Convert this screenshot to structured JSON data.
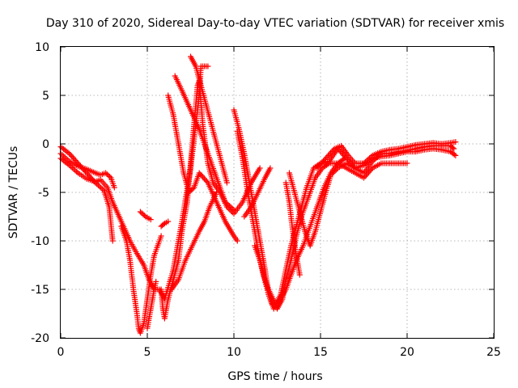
{
  "chart_data": {
    "type": "scatter",
    "title": "Day 310 of 2020, Sidereal Day-to-day VTEC variation (SDTVAR) for receiver xmis",
    "xlabel": "GPS time / hours",
    "ylabel": "SDTVAR / TECUs",
    "xlim": [
      0,
      25
    ],
    "ylim": [
      -20,
      10
    ],
    "xticks": [
      "0",
      "5",
      "10",
      "15",
      "20",
      "25"
    ],
    "yticks": [
      "-20",
      "-15",
      "-10",
      "-5",
      "0",
      "5",
      "10"
    ],
    "grid": true,
    "marker": "plus",
    "color": "#ff0000",
    "series": [
      {
        "points": [
          [
            0.0,
            -1.5
          ],
          [
            0.5,
            -2.2
          ],
          [
            1.0,
            -3.0
          ],
          [
            1.5,
            -3.6
          ],
          [
            2.0,
            -3.9
          ],
          [
            2.3,
            -3.7
          ],
          [
            2.7,
            -4.5
          ],
          [
            3.0,
            -6.0
          ],
          [
            3.5,
            -8.0
          ],
          [
            4.0,
            -10.0
          ],
          [
            4.4,
            -11.3
          ],
          [
            4.8,
            -12.5
          ],
          [
            5.1,
            -14.0
          ],
          [
            5.4,
            -15.0
          ],
          [
            5.7,
            -15.0
          ],
          [
            6.0,
            -16.0
          ],
          [
            6.5,
            -13.0
          ],
          [
            7.0,
            -8.0
          ],
          [
            7.5,
            -2.5
          ],
          [
            8.0,
            5.0
          ],
          [
            8.1,
            8.0
          ],
          [
            8.5,
            8.0
          ]
        ]
      },
      {
        "points": [
          [
            0.0,
            -1.0
          ],
          [
            0.5,
            -1.8
          ],
          [
            1.0,
            -2.3
          ],
          [
            1.5,
            -2.6
          ],
          [
            2.0,
            -3.0
          ],
          [
            2.3,
            -3.2
          ],
          [
            2.6,
            -3.0
          ],
          [
            2.9,
            -3.5
          ],
          [
            3.1,
            -4.5
          ]
        ]
      },
      {
        "points": [
          [
            0.0,
            -0.3
          ],
          [
            0.5,
            -1.0
          ],
          [
            1.0,
            -2.0
          ],
          [
            1.5,
            -3.0
          ],
          [
            2.0,
            -4.0
          ],
          [
            2.5,
            -4.8
          ],
          [
            2.8,
            -6.5
          ],
          [
            3.0,
            -10.0
          ]
        ]
      },
      {
        "points": [
          [
            3.5,
            -8.5
          ],
          [
            3.8,
            -10.0
          ],
          [
            4.0,
            -12.0
          ],
          [
            4.2,
            -15.0
          ],
          [
            4.4,
            -17.5
          ],
          [
            4.5,
            -19.0
          ],
          [
            4.6,
            -19.5
          ],
          [
            4.8,
            -18.5
          ],
          [
            5.0,
            -16.0
          ],
          [
            5.2,
            -13.5
          ],
          [
            5.4,
            -11.5
          ],
          [
            5.6,
            -10.5
          ],
          [
            5.8,
            -9.5
          ]
        ]
      },
      {
        "points": [
          [
            5.0,
            -19.0
          ],
          [
            5.2,
            -17.0
          ],
          [
            5.4,
            -15.0
          ],
          [
            5.5,
            -14.2
          ]
        ]
      },
      {
        "points": [
          [
            4.6,
            -7.0
          ],
          [
            4.9,
            -7.5
          ],
          [
            5.2,
            -7.8
          ]
        ]
      },
      {
        "points": [
          [
            5.8,
            -8.5
          ],
          [
            6.0,
            -8.2
          ],
          [
            6.2,
            -8.0
          ]
        ]
      },
      {
        "points": [
          [
            5.8,
            -15.0
          ],
          [
            5.9,
            -17.0
          ],
          [
            6.0,
            -18.0
          ],
          [
            6.2,
            -16.0
          ],
          [
            6.5,
            -14.0
          ],
          [
            6.8,
            -12.0
          ],
          [
            7.0,
            -9.0
          ],
          [
            7.3,
            -6.0
          ],
          [
            7.5,
            -2.0
          ],
          [
            7.7,
            2.0
          ],
          [
            7.9,
            6.0
          ],
          [
            8.0,
            6.5
          ],
          [
            8.2,
            2.0
          ],
          [
            8.5,
            -2.0
          ],
          [
            8.8,
            -4.0
          ],
          [
            9.2,
            -5.0
          ],
          [
            9.6,
            -6.5
          ],
          [
            10.0,
            -7.2
          ],
          [
            10.5,
            -6.0
          ],
          [
            11.0,
            -4.0
          ],
          [
            11.5,
            -2.5
          ]
        ]
      },
      {
        "points": [
          [
            6.2,
            5.0
          ],
          [
            6.5,
            3.0
          ],
          [
            6.8,
            0.0
          ],
          [
            7.1,
            -3.0
          ],
          [
            7.4,
            -5.0
          ],
          [
            7.7,
            -4.5
          ],
          [
            8.0,
            -3.0
          ],
          [
            8.5,
            -4.0
          ],
          [
            9.0,
            -6.0
          ],
          [
            9.5,
            -8.0
          ],
          [
            10.0,
            -9.5
          ],
          [
            10.2,
            -10.0
          ]
        ]
      },
      {
        "points": [
          [
            6.4,
            -15.0
          ],
          [
            6.8,
            -14.0
          ],
          [
            7.2,
            -12.0
          ],
          [
            7.6,
            -10.5
          ],
          [
            8.0,
            -9.0
          ],
          [
            8.3,
            -8.0
          ],
          [
            8.6,
            -6.5
          ],
          [
            9.0,
            -5.0
          ]
        ]
      },
      {
        "points": [
          [
            6.6,
            7.0
          ],
          [
            7.0,
            5.5
          ],
          [
            7.5,
            3.5
          ],
          [
            8.0,
            1.5
          ],
          [
            8.5,
            -1.0
          ],
          [
            9.0,
            -3.5
          ],
          [
            9.5,
            -6.0
          ],
          [
            10.0,
            -6.8
          ]
        ]
      },
      {
        "points": [
          [
            7.5,
            9.0
          ],
          [
            7.8,
            8.0
          ],
          [
            8.1,
            6.0
          ],
          [
            8.4,
            4.0
          ],
          [
            8.7,
            2.0
          ],
          [
            9.0,
            0.0
          ],
          [
            9.3,
            -2.0
          ],
          [
            9.6,
            -4.0
          ]
        ]
      },
      {
        "points": [
          [
            10.0,
            3.5
          ],
          [
            10.3,
            1.5
          ],
          [
            10.6,
            -1.0
          ],
          [
            10.9,
            -4.0
          ],
          [
            11.2,
            -7.0
          ],
          [
            11.5,
            -10.0
          ],
          [
            11.8,
            -13.0
          ],
          [
            12.0,
            -15.5
          ],
          [
            12.3,
            -17.0
          ],
          [
            12.7,
            -15.5
          ],
          [
            13.0,
            -13.0
          ],
          [
            13.3,
            -10.5
          ],
          [
            13.6,
            -8.5
          ],
          [
            13.9,
            -6.5
          ],
          [
            14.2,
            -4.5
          ],
          [
            14.6,
            -2.5
          ],
          [
            15.0,
            -2.0
          ],
          [
            15.5,
            -1.8
          ],
          [
            16.0,
            -0.5
          ],
          [
            16.5,
            -1.5
          ],
          [
            17.0,
            -2.5
          ],
          [
            17.5,
            -3.0
          ],
          [
            18.0,
            -1.8
          ],
          [
            18.5,
            -1.0
          ],
          [
            19.0,
            -1.0
          ],
          [
            19.5,
            -0.8
          ],
          [
            20.0,
            -0.7
          ],
          [
            20.5,
            -0.5
          ],
          [
            21.0,
            -0.3
          ],
          [
            21.5,
            -0.2
          ],
          [
            22.0,
            -0.2
          ],
          [
            22.5,
            -0.2
          ],
          [
            22.7,
            -0.5
          ]
        ]
      },
      {
        "points": [
          [
            10.2,
            1.3
          ],
          [
            10.5,
            -1.5
          ],
          [
            10.8,
            -5.0
          ],
          [
            11.1,
            -8.0
          ],
          [
            11.4,
            -11.0
          ],
          [
            11.7,
            -13.5
          ],
          [
            12.0,
            -15.5
          ],
          [
            12.2,
            -16.5
          ],
          [
            12.5,
            -17.0
          ],
          [
            12.8,
            -16.0
          ],
          [
            13.0,
            -14.0
          ],
          [
            13.3,
            -12.0
          ],
          [
            13.6,
            -9.5
          ],
          [
            13.9,
            -7.5
          ],
          [
            14.3,
            -5.5
          ],
          [
            14.7,
            -3.5
          ],
          [
            15.1,
            -2.5
          ],
          [
            15.5,
            -2.0
          ],
          [
            16.0,
            -2.0
          ],
          [
            16.5,
            -2.5
          ],
          [
            17.0,
            -3.0
          ],
          [
            17.5,
            -3.5
          ],
          [
            18.0,
            -2.5
          ],
          [
            18.5,
            -2.0
          ],
          [
            19.0,
            -2.0
          ],
          [
            19.5,
            -2.0
          ],
          [
            20.0,
            -2.0
          ]
        ]
      },
      {
        "points": [
          [
            10.6,
            -7.5
          ],
          [
            11.0,
            -6.5
          ],
          [
            11.4,
            -5.0
          ],
          [
            11.8,
            -3.5
          ],
          [
            12.1,
            -2.5
          ]
        ]
      },
      {
        "points": [
          [
            11.2,
            -10.5
          ],
          [
            11.5,
            -12.0
          ],
          [
            11.8,
            -14.0
          ],
          [
            12.0,
            -15.0
          ],
          [
            12.4,
            -16.5
          ],
          [
            12.7,
            -16.0
          ],
          [
            13.0,
            -15.0
          ],
          [
            13.3,
            -13.5
          ],
          [
            13.6,
            -12.0
          ],
          [
            14.0,
            -10.5
          ],
          [
            14.4,
            -8.5
          ],
          [
            14.8,
            -6.5
          ],
          [
            15.2,
            -4.5
          ],
          [
            15.6,
            -3.0
          ],
          [
            16.0,
            -2.0
          ],
          [
            16.4,
            -1.5
          ]
        ]
      },
      {
        "points": [
          [
            13.0,
            -4.0
          ],
          [
            13.2,
            -6.0
          ],
          [
            13.4,
            -9.0
          ],
          [
            13.6,
            -11.5
          ],
          [
            13.8,
            -13.5
          ]
        ]
      },
      {
        "points": [
          [
            13.2,
            -3.0
          ],
          [
            13.5,
            -5.0
          ],
          [
            13.8,
            -7.0
          ],
          [
            14.1,
            -9.0
          ],
          [
            14.4,
            -10.5
          ],
          [
            14.7,
            -9.0
          ],
          [
            15.0,
            -7.0
          ],
          [
            15.3,
            -5.0
          ],
          [
            15.6,
            -3.2
          ],
          [
            16.0,
            -2.5
          ],
          [
            16.5,
            -2.0
          ],
          [
            17.0,
            -2.5
          ],
          [
            17.5,
            -2.2
          ],
          [
            18.0,
            -1.5
          ],
          [
            18.5,
            -1.3
          ],
          [
            19.0,
            -1.2
          ],
          [
            19.5,
            -1.0
          ],
          [
            20.0,
            -0.8
          ],
          [
            20.5,
            -0.8
          ],
          [
            21.0,
            -0.6
          ],
          [
            21.5,
            -0.5
          ],
          [
            22.0,
            -0.6
          ],
          [
            22.5,
            -0.8
          ],
          [
            22.8,
            -1.2
          ]
        ]
      },
      {
        "points": [
          [
            14.8,
            -2.5
          ],
          [
            15.3,
            -1.5
          ],
          [
            15.8,
            -0.5
          ],
          [
            16.2,
            -0.2
          ],
          [
            16.6,
            -1.2
          ],
          [
            17.0,
            -2.0
          ],
          [
            17.5,
            -2.0
          ],
          [
            18.0,
            -1.2
          ],
          [
            18.5,
            -0.8
          ],
          [
            19.0,
            -0.6
          ],
          [
            19.5,
            -0.5
          ],
          [
            20.0,
            -0.3
          ],
          [
            20.5,
            -0.1
          ],
          [
            21.0,
            0.0
          ],
          [
            21.5,
            0.1
          ],
          [
            22.0,
            0.0
          ],
          [
            22.5,
            0.1
          ],
          [
            22.8,
            0.2
          ]
        ]
      }
    ]
  }
}
